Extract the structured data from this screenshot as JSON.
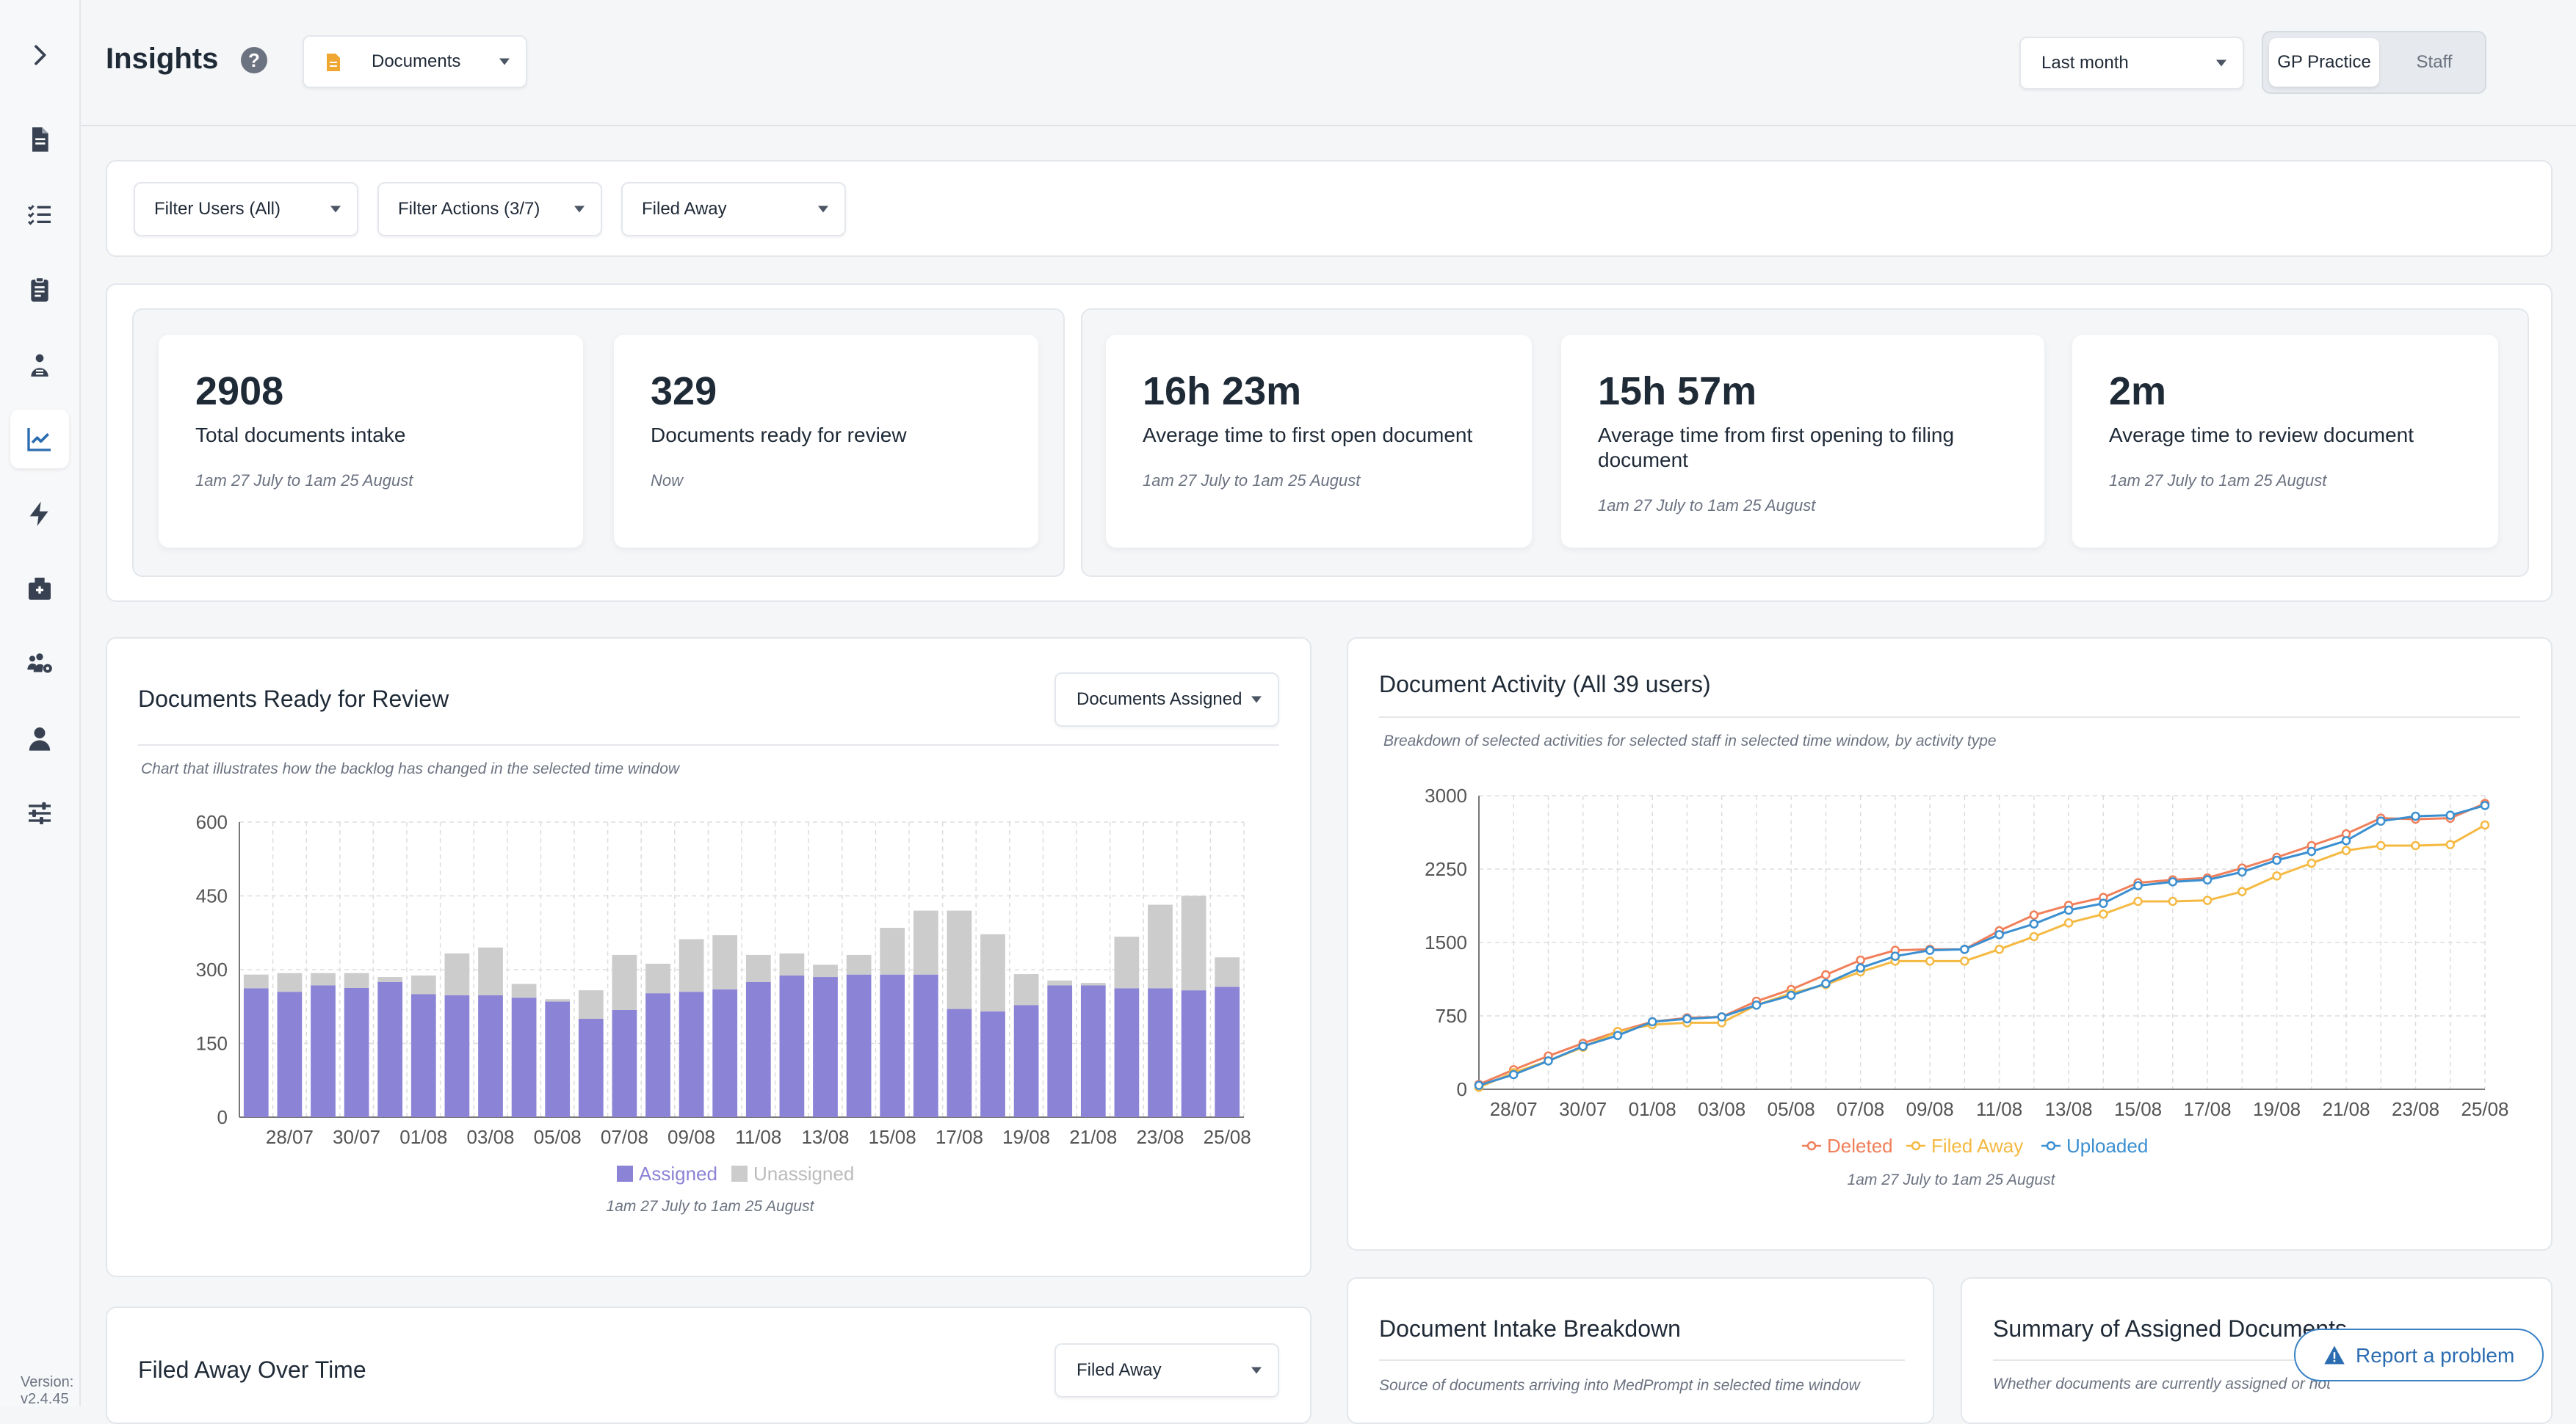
{
  "app": {
    "title": "Insights",
    "help_icon": "question-icon",
    "version": "Version: v2.4.45",
    "accent": "#8b83d6"
  },
  "sidebar": {
    "items": [
      {
        "icon": "chevron-right-icon"
      },
      {
        "icon": "document-icon"
      },
      {
        "icon": "checklist-icon"
      },
      {
        "icon": "clipboard-icon"
      },
      {
        "icon": "user-tasks-icon"
      },
      {
        "icon": "chart-line-icon",
        "active": true
      },
      {
        "icon": "lightning-icon"
      },
      {
        "icon": "hospital-icon"
      },
      {
        "icon": "users-gear-icon"
      },
      {
        "icon": "user-icon"
      },
      {
        "icon": "sliders-icon"
      }
    ]
  },
  "header": {
    "document_type": "Documents",
    "time_range": "Last month",
    "view_toggle": {
      "active": "GP Practice",
      "inactive": "Staff"
    }
  },
  "filters": {
    "users": "Filter Users (All)",
    "actions": "Filter Actions (3/7)",
    "status": "Filed Away"
  },
  "stats": [
    {
      "value": "2908",
      "label": "Total documents intake",
      "sub": "1am 27 July to 1am 25 August"
    },
    {
      "value": "329",
      "label": "Documents ready for review",
      "sub": "Now"
    },
    {
      "value": "16h 23m",
      "label": "Average time to first open document",
      "sub": "1am 27 July to 1am 25 August"
    },
    {
      "value": "15h 57m",
      "label": "Average time from first opening to filing document",
      "sub": "1am 27 July to 1am 25 August"
    },
    {
      "value": "2m",
      "label": "Average time to review document",
      "sub": "1am 27 July to 1am 25 August"
    }
  ],
  "panels": {
    "ready": {
      "title": "Documents Ready for Review",
      "dropdown": "Documents Assigned",
      "subtitle": "Chart that illustrates how the backlog has changed in the selected time window",
      "footer": "1am 27 July to 1am 25 August"
    },
    "activity": {
      "title": "Document Activity (All 39 users)",
      "subtitle": "Breakdown of selected activities for selected staff in selected time window, by activity type",
      "footer": "1am 27 July to 1am 25 August"
    },
    "filed": {
      "title": "Filed Away Over Time",
      "dropdown": "Filed Away"
    },
    "intake": {
      "title": "Document Intake Breakdown",
      "subtitle": "Source of documents arriving into MedPrompt in selected time window"
    },
    "summary": {
      "title": "Summary of Assigned Documents",
      "subtitle": "Whether documents are currently assigned or not"
    }
  },
  "report_button": {
    "label": "Report a problem",
    "icon": "warning-icon"
  },
  "chart_data": [
    {
      "type": "bar",
      "stacked": true,
      "x": [
        "27/07",
        "28/07",
        "29/07",
        "30/07",
        "31/07",
        "01/08",
        "02/08",
        "03/08",
        "04/08",
        "05/08",
        "06/08",
        "07/08",
        "08/08",
        "09/08",
        "10/08",
        "11/08",
        "12/08",
        "13/08",
        "14/08",
        "15/08",
        "16/08",
        "17/08",
        "18/08",
        "19/08",
        "20/08",
        "21/08",
        "22/08",
        "23/08",
        "24/08",
        "25/08"
      ],
      "tick_labels": [
        "28/07",
        "30/07",
        "01/08",
        "03/08",
        "05/08",
        "07/08",
        "09/08",
        "11/08",
        "13/08",
        "15/08",
        "17/08",
        "19/08",
        "21/08",
        "23/08",
        "25/08"
      ],
      "series": [
        {
          "name": "Assigned",
          "color": "#8b83d6",
          "values": [
            262,
            255,
            268,
            263,
            275,
            250,
            248,
            248,
            243,
            235,
            200,
            218,
            252,
            255,
            260,
            275,
            288,
            285,
            290,
            290,
            290,
            220,
            215,
            228,
            268,
            268,
            262,
            262,
            258,
            265
          ]
        },
        {
          "name": "Unassigned",
          "color": "#cccccc",
          "values": [
            28,
            38,
            25,
            30,
            10,
            38,
            85,
            97,
            28,
            5,
            58,
            112,
            60,
            107,
            110,
            55,
            45,
            25,
            40,
            95,
            130,
            200,
            157,
            63,
            10,
            5,
            105,
            170,
            192,
            60
          ]
        }
      ],
      "yticks": [
        0,
        150,
        300,
        450,
        600
      ],
      "ylim": [
        0,
        600
      ],
      "grid": true,
      "legend": "bottom"
    },
    {
      "type": "line",
      "x": [
        "27/07",
        "28/07",
        "29/07",
        "30/07",
        "31/07",
        "01/08",
        "02/08",
        "03/08",
        "04/08",
        "05/08",
        "06/08",
        "07/08",
        "08/08",
        "09/08",
        "10/08",
        "11/08",
        "12/08",
        "13/08",
        "14/08",
        "15/08",
        "16/08",
        "17/08",
        "18/08",
        "19/08",
        "20/08",
        "21/08",
        "22/08",
        "23/08",
        "24/08",
        "25/08"
      ],
      "tick_labels": [
        "28/07",
        "30/07",
        "01/08",
        "03/08",
        "05/08",
        "07/08",
        "09/08",
        "11/08",
        "13/08",
        "15/08",
        "17/08",
        "19/08",
        "21/08",
        "23/08",
        "25/08"
      ],
      "series": [
        {
          "name": "Deleted",
          "color": "#f07f5a",
          "values": [
            50,
            200,
            340,
            470,
            590,
            690,
            730,
            740,
            900,
            1020,
            1170,
            1320,
            1420,
            1430,
            1430,
            1620,
            1780,
            1880,
            1960,
            2110,
            2140,
            2160,
            2260,
            2370,
            2490,
            2610,
            2770,
            2760,
            2770,
            2920
          ]
        },
        {
          "name": "Filed Away",
          "color": "#f5b942",
          "values": [
            20,
            170,
            290,
            430,
            590,
            660,
            680,
            680,
            860,
            980,
            1070,
            1200,
            1310,
            1310,
            1310,
            1430,
            1560,
            1700,
            1790,
            1920,
            1920,
            1930,
            2020,
            2180,
            2310,
            2440,
            2490,
            2490,
            2500,
            2700
          ]
        },
        {
          "name": "Uploaded",
          "color": "#3b8fd0",
          "values": [
            40,
            150,
            290,
            440,
            550,
            690,
            720,
            740,
            860,
            960,
            1080,
            1240,
            1360,
            1420,
            1430,
            1580,
            1690,
            1830,
            1900,
            2080,
            2120,
            2140,
            2220,
            2340,
            2430,
            2540,
            2740,
            2790,
            2800,
            2900
          ]
        }
      ],
      "yticks": [
        0,
        750,
        1500,
        2250,
        3000
      ],
      "ylim": [
        0,
        3000
      ],
      "grid": true,
      "legend": "bottom"
    }
  ]
}
